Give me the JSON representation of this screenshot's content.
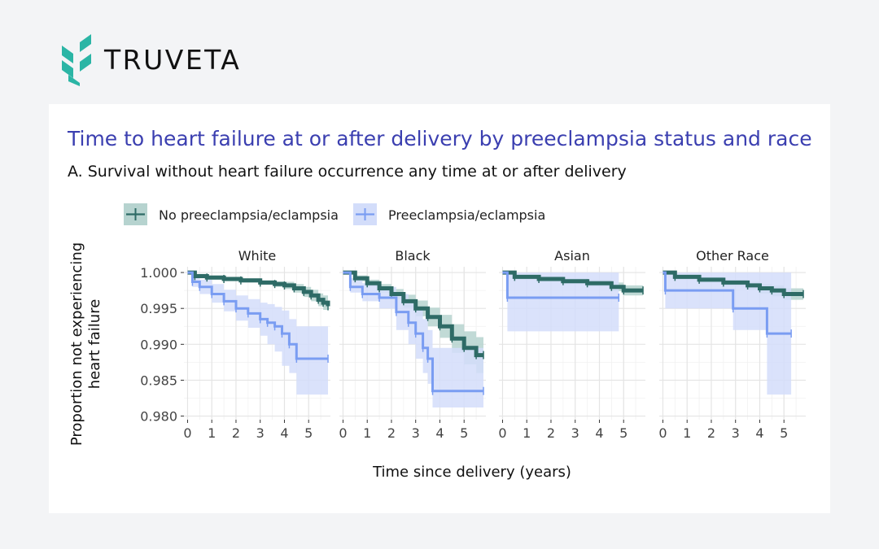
{
  "brand": {
    "name": "TRUVETA",
    "colors": {
      "teal": "#2bb5a5",
      "title_blue": "#3b3fb0"
    }
  },
  "header": {
    "title": "Time to heart failure at or after delivery by preeclampsia status and race",
    "subtitle": "A. Survival without heart failure occurrence any time at or after delivery"
  },
  "chart_data": {
    "type": "line",
    "xlabel": "Time since delivery (years)",
    "ylabel_lines": [
      "Proportion not experiencing",
      "heart failure"
    ],
    "xlim": [
      -0.15,
      5.9
    ],
    "ylim": [
      0.9795,
      1.0008
    ],
    "x_ticks": [
      0,
      1,
      2,
      3,
      4,
      5
    ],
    "y_ticks": [
      1.0,
      0.995,
      0.99,
      0.985,
      0.98
    ],
    "y_tick_labels": [
      "1.000",
      "0.995",
      "0.990",
      "0.985",
      "0.980"
    ],
    "grid": true,
    "legend_position": "top",
    "legend": [
      {
        "label": "No preeclampsia/eclampsia",
        "color": "#2e6b66",
        "band": "#b6d3cf"
      },
      {
        "label": "Preeclampsia/eclampsia",
        "color": "#7a9df2",
        "band": "#d3ddfa"
      }
    ],
    "panels": [
      {
        "label": "White",
        "series": [
          {
            "name": "No preeclampsia/eclampsia",
            "x": [
              0,
              0.3,
              0.8,
              1.5,
              2.2,
              3.0,
              3.6,
              4.0,
              4.4,
              4.8,
              5.1,
              5.4,
              5.6,
              5.8
            ],
            "y": [
              1.0,
              0.9995,
              0.9993,
              0.9991,
              0.9989,
              0.9986,
              0.9984,
              0.9982,
              0.9978,
              0.9973,
              0.9968,
              0.9962,
              0.9958,
              0.9953
            ],
            "lower": [
              1.0,
              0.9992,
              0.999,
              0.9988,
              0.9986,
              0.9983,
              0.998,
              0.9977,
              0.9972,
              0.9966,
              0.996,
              0.9953,
              0.9948,
              0.9942
            ],
            "upper": [
              1.0,
              0.9998,
              0.9996,
              0.9994,
              0.9992,
              0.9989,
              0.9988,
              0.9987,
              0.9984,
              0.998,
              0.9976,
              0.9971,
              0.9968,
              0.9964
            ]
          },
          {
            "name": "Preeclampsia/eclampsia",
            "x": [
              0,
              0.2,
              0.5,
              1.0,
              1.5,
              2.0,
              2.5,
              3.0,
              3.3,
              3.6,
              3.9,
              4.2,
              4.5,
              5.8
            ],
            "y": [
              1.0,
              0.9987,
              0.998,
              0.997,
              0.996,
              0.995,
              0.9943,
              0.9935,
              0.993,
              0.9925,
              0.9915,
              0.99,
              0.988,
              0.988
            ],
            "lower": [
              1.0,
              0.998,
              0.997,
              0.9958,
              0.9946,
              0.9933,
              0.9923,
              0.9912,
              0.99,
              0.989,
              0.987,
              0.986,
              0.983,
              0.983
            ],
            "upper": [
              1.0,
              0.9993,
              0.999,
              0.9984,
              0.9976,
              0.9968,
              0.9963,
              0.9958,
              0.9956,
              0.9952,
              0.9947,
              0.9935,
              0.9925,
              0.9925
            ]
          }
        ]
      },
      {
        "label": "Black",
        "series": [
          {
            "name": "No preeclampsia/eclampsia",
            "x": [
              0,
              0.5,
              1.0,
              1.5,
              2.0,
              2.5,
              3.0,
              3.5,
              4.0,
              4.5,
              5.0,
              5.5,
              5.8
            ],
            "y": [
              1.0,
              0.9992,
              0.9985,
              0.9978,
              0.997,
              0.996,
              0.995,
              0.9938,
              0.9925,
              0.9908,
              0.9895,
              0.9885,
              0.9885
            ],
            "lower": [
              1.0,
              0.9988,
              0.998,
              0.9972,
              0.9963,
              0.9951,
              0.9939,
              0.9925,
              0.9909,
              0.9888,
              0.9872,
              0.986,
              0.986
            ],
            "upper": [
              1.0,
              0.9996,
              0.999,
              0.9984,
              0.9977,
              0.9969,
              0.9961,
              0.9951,
              0.9941,
              0.9928,
              0.9918,
              0.991,
              0.991
            ]
          },
          {
            "name": "Preeclampsia/eclampsia",
            "x": [
              0,
              0.3,
              0.8,
              1.5,
              2.2,
              2.7,
              3.0,
              3.3,
              3.5,
              3.7,
              5.8
            ],
            "y": [
              1.0,
              0.998,
              0.997,
              0.9965,
              0.9945,
              0.993,
              0.9915,
              0.9895,
              0.988,
              0.9835,
              0.9835
            ],
            "lower": [
              1.0,
              0.9972,
              0.996,
              0.995,
              0.992,
              0.99,
              0.988,
              0.986,
              0.9845,
              0.9812,
              0.9812
            ],
            "upper": [
              1.0,
              0.9992,
              0.9985,
              0.998,
              0.997,
              0.996,
              0.995,
              0.9935,
              0.992,
              0.9895,
              0.9895
            ]
          }
        ]
      },
      {
        "label": "Asian",
        "series": [
          {
            "name": "No preeclampsia/eclampsia",
            "x": [
              0,
              0.5,
              1.5,
              2.5,
              3.5,
              4.5,
              5.0,
              5.8
            ],
            "y": [
              1.0,
              0.9994,
              0.9991,
              0.9988,
              0.9985,
              0.998,
              0.9975,
              0.9975
            ],
            "lower": [
              1.0,
              0.999,
              0.9987,
              0.9984,
              0.998,
              0.9974,
              0.9968,
              0.9968
            ],
            "upper": [
              1.0,
              0.9997,
              0.9995,
              0.9992,
              0.999,
              0.9986,
              0.9982,
              0.9982
            ]
          },
          {
            "name": "Preeclampsia/eclampsia",
            "x": [
              0,
              0.2,
              4.8
            ],
            "y": [
              1.0,
              0.9965,
              0.9965
            ],
            "lower": [
              1.0,
              0.9918,
              0.9918
            ],
            "upper": [
              1.0,
              1.0,
              1.0
            ]
          }
        ]
      },
      {
        "label": "Other Race",
        "series": [
          {
            "name": "No preeclampsia/eclampsia",
            "x": [
              0,
              0.5,
              1.5,
              2.5,
              3.5,
              4.0,
              4.5,
              5.0,
              5.8
            ],
            "y": [
              1.0,
              0.9994,
              0.999,
              0.9986,
              0.9982,
              0.9978,
              0.9975,
              0.997,
              0.997
            ],
            "lower": [
              1.0,
              0.999,
              0.9986,
              0.9981,
              0.9976,
              0.9971,
              0.9967,
              0.9962,
              0.9962
            ],
            "upper": [
              1.0,
              0.9997,
              0.9994,
              0.999,
              0.9987,
              0.9984,
              0.9982,
              0.9978,
              0.9978
            ]
          },
          {
            "name": "Preeclampsia/eclampsia",
            "x": [
              0,
              0.1,
              2.9,
              4.3,
              5.3
            ],
            "y": [
              1.0,
              0.9975,
              0.995,
              0.9915,
              0.9915
            ],
            "lower": [
              1.0,
              0.995,
              0.992,
              0.983,
              0.983
            ],
            "upper": [
              1.0,
              1.0,
              1.0,
              1.0,
              1.0
            ]
          }
        ]
      }
    ]
  }
}
